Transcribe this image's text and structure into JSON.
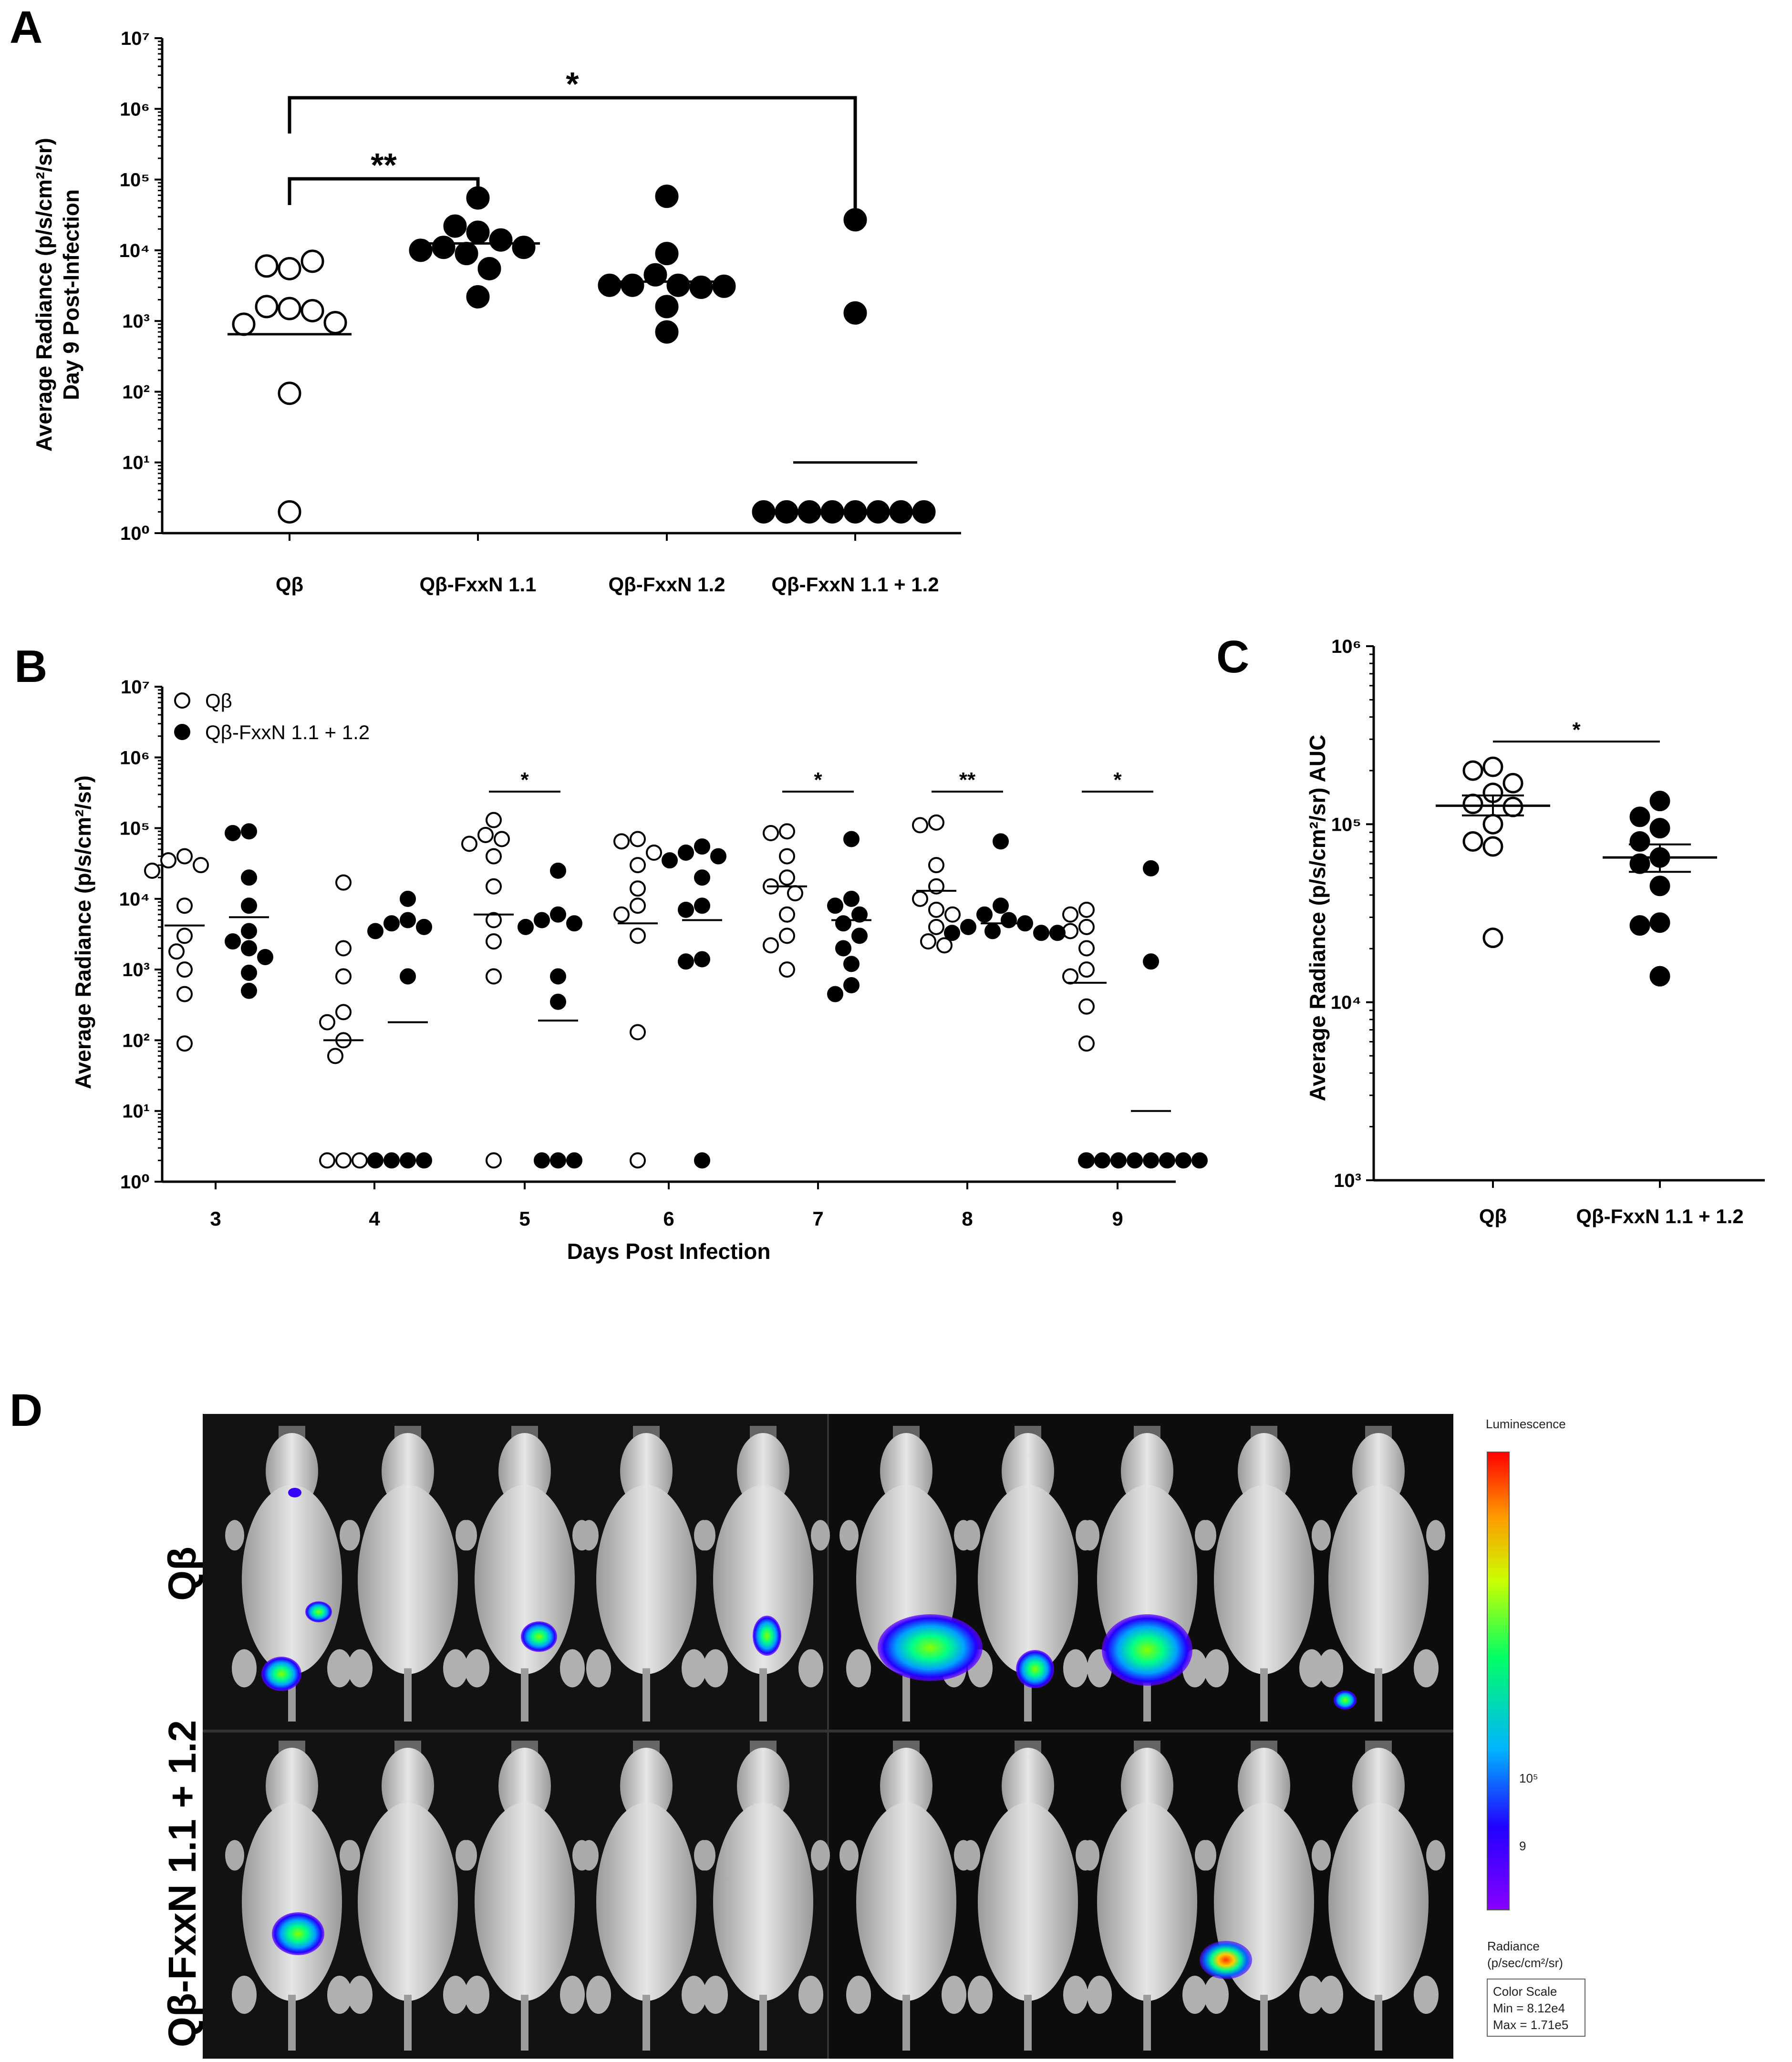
{
  "panels": {
    "a": {
      "letter": "A"
    },
    "b": {
      "letter": "B"
    },
    "c": {
      "letter": "C"
    },
    "d": {
      "letter": "D"
    }
  },
  "chart_data": [
    {
      "id": "A",
      "type": "scatter",
      "yscale": "log",
      "ylim": [
        1,
        10000000
      ],
      "ytick_labels": [
        "10⁰",
        "10¹",
        "10²",
        "10³",
        "10⁴",
        "10⁵",
        "10⁶",
        "10⁷"
      ],
      "ylabel_line1": "Average Radiance (p/s/cm²/sr)",
      "ylabel_line2": "Day 9 Post-Infection",
      "categories": [
        "Qβ",
        "Qβ-FxxN 1.1",
        "Qβ-FxxN 1.2",
        "Qβ-FxxN 1.1 + 1.2"
      ],
      "series": [
        {
          "name": "Qβ",
          "filled": false,
          "values": [
            5500,
            6000,
            7000,
            1500,
            1600,
            1400,
            900,
            950,
            95,
            2
          ],
          "mean": 650
        },
        {
          "name": "Qβ-FxxN 1.1",
          "filled": true,
          "values": [
            55000,
            18000,
            22000,
            14000,
            11000,
            9000,
            11000,
            10000,
            5500,
            2200
          ],
          "mean": 12500
        },
        {
          "name": "Qβ-FxxN 1.2",
          "filled": true,
          "values": [
            58000,
            9000,
            4500,
            3200,
            3200,
            3000,
            3200,
            3100,
            1600,
            700
          ],
          "mean": 3600
        },
        {
          "name": "Qβ-FxxN 1.1 + 1.2",
          "filled": true,
          "values": [
            27000,
            1300,
            2,
            2,
            2,
            2,
            2,
            2,
            2,
            2
          ],
          "mean": 10
        }
      ],
      "significance": [
        {
          "from": 0,
          "to": 1,
          "label": "**"
        },
        {
          "from": 0,
          "to": 3,
          "label": "*"
        }
      ]
    },
    {
      "id": "B",
      "type": "scatter",
      "yscale": "log",
      "ylim": [
        1,
        10000000
      ],
      "ytick_labels": [
        "10⁰",
        "10¹",
        "10²",
        "10³",
        "10⁴",
        "10⁵",
        "10⁶",
        "10⁷"
      ],
      "ylabel": "Average Radiance (p/s/cm²/sr)",
      "xlabel": "Days Post Infection",
      "categories": [
        "3",
        "4",
        "5",
        "6",
        "7",
        "8",
        "9"
      ],
      "legend": [
        {
          "label": "Qβ",
          "filled": false
        },
        {
          "label": "Qβ-FxxN 1.1 + 1.2",
          "filled": true
        }
      ],
      "series": [
        {
          "name": "Qβ",
          "filled": false,
          "values": [
            [
              40000,
              35000,
              30000,
              25000,
              8000,
              3000,
              1800,
              1000,
              450,
              90
            ],
            [
              17000,
              2000,
              800,
              250,
              180,
              100,
              60,
              2,
              2,
              2
            ],
            [
              130000,
              80000,
              70000,
              60000,
              40000,
              15000,
              5000,
              2500,
              800,
              2
            ],
            [
              70000,
              65000,
              45000,
              30000,
              14000,
              8000,
              6000,
              3000,
              130,
              2
            ],
            [
              90000,
              85000,
              40000,
              20000,
              15000,
              12000,
              6000,
              3000,
              2200,
              1000
            ],
            [
              120000,
              110000,
              30000,
              15000,
              10000,
              7000,
              6000,
              4000,
              2500,
              2200
            ],
            [
              7000,
              6000,
              4000,
              3500,
              2000,
              1000,
              800,
              300,
              90,
              2
            ]
          ],
          "mean": [
            4200,
            100,
            6000,
            4500,
            15000,
            13000,
            650
          ]
        },
        {
          "name": "Qβ-FxxN 1.1 + 1.2",
          "filled": true,
          "values": [
            [
              90000,
              85000,
              20000,
              8000,
              3500,
              2500,
              2000,
              1500,
              900,
              500
            ],
            [
              10000,
              5000,
              4500,
              4000,
              3500,
              800,
              2,
              2,
              2,
              2
            ],
            [
              25000,
              6000,
              5000,
              4500,
              4000,
              800,
              350,
              2,
              2,
              2
            ],
            [
              55000,
              45000,
              40000,
              35000,
              20000,
              8000,
              7000,
              1400,
              1300,
              2
            ],
            [
              70000,
              10000,
              8000,
              6000,
              4500,
              3000,
              2000,
              1200,
              600,
              450
            ],
            [
              65000,
              8000,
              6000,
              5000,
              4500,
              4000,
              3500,
              3300,
              3300,
              3300
            ],
            [
              27000,
              1300,
              2,
              2,
              2,
              2,
              2,
              2,
              2,
              2
            ]
          ],
          "mean": [
            5500,
            180,
            190,
            5000,
            5000,
            4500,
            10
          ]
        }
      ],
      "significance": [
        {
          "day": "5",
          "label": "*"
        },
        {
          "day": "7",
          "label": "*"
        },
        {
          "day": "8",
          "label": "**"
        },
        {
          "day": "9",
          "label": "*"
        }
      ]
    },
    {
      "id": "C",
      "type": "scatter",
      "yscale": "log",
      "ylim": [
        1000,
        1000000
      ],
      "ytick_labels": [
        "10³",
        "10⁴",
        "10⁵",
        "10⁶"
      ],
      "ylabel": "Average Radiance (p/s/cm²/sr) AUC",
      "categories": [
        "Qβ",
        "Qβ-FxxN 1.1 + 1.2"
      ],
      "series": [
        {
          "name": "Qβ",
          "filled": false,
          "values": [
            210000,
            200000,
            170000,
            150000,
            130000,
            125000,
            100000,
            80000,
            75000,
            23000
          ],
          "mean": 127000,
          "sem": [
            112000,
            145000
          ]
        },
        {
          "name": "Qβ-FxxN 1.1 + 1.2",
          "filled": true,
          "values": [
            135000,
            110000,
            95000,
            80000,
            65000,
            60000,
            45000,
            28000,
            27000,
            14000
          ],
          "mean": 65000,
          "sem": [
            54000,
            77000
          ]
        }
      ],
      "significance": [
        {
          "from": 0,
          "to": 1,
          "label": "*"
        }
      ]
    }
  ],
  "panel_d": {
    "row_labels": [
      "Qβ",
      "Qβ-FxxN 1.1 + 1.2"
    ],
    "color_scale": {
      "title": "Luminescence",
      "tick_major": "10⁵",
      "tick_minor": "9",
      "unit_line1": "Radiance",
      "unit_line2": "(p/sec/cm²/sr)",
      "box_title": "Color Scale",
      "min": "Min = 8.12e4",
      "max": "Max = 1.71e5"
    }
  }
}
